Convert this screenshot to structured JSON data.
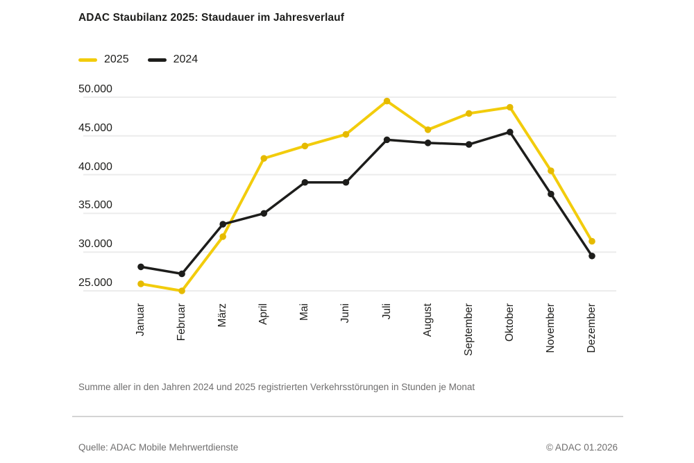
{
  "chart_data": {
    "type": "line",
    "title": "ADAC Staubilanz 2025: Staudauer im Jahresverlauf",
    "categories": [
      "Januar",
      "Februar",
      "März",
      "April",
      "Mai",
      "Juni",
      "Juli",
      "August",
      "September",
      "Oktober",
      "November",
      "Dezember"
    ],
    "series": [
      {
        "name": "2025",
        "color": "#f2cc0c",
        "marker_color": "#e5ba00",
        "values": [
          25900,
          25000,
          32000,
          42100,
          43700,
          45200,
          49500,
          45800,
          47900,
          48700,
          40500,
          31400
        ]
      },
      {
        "name": "2024",
        "color": "#1d1d1b",
        "marker_color": "#1d1d1b",
        "values": [
          28100,
          27200,
          33600,
          35000,
          39000,
          39000,
          44500,
          44100,
          43900,
          45500,
          37500,
          29500
        ]
      }
    ],
    "yticks": {
      "values": [
        25000,
        30000,
        35000,
        40000,
        45000,
        50000
      ],
      "labels": [
        "25.000",
        "30.000",
        "35.000",
        "40.000",
        "45.000",
        "50.000"
      ]
    },
    "ylim": [
      25000,
      50000
    ],
    "xlabel": "",
    "ylabel": "",
    "grid": true,
    "legend_position": "top-left",
    "gridline_color": "#ececec"
  },
  "note": "Summe aller in den Jahren 2024 und 2025 registrierten Verkehrsstörungen in Stunden je Monat",
  "footer": {
    "source": "Quelle: ADAC Mobile Mehrwertdienste",
    "copyright": "© ADAC 01.2026"
  }
}
